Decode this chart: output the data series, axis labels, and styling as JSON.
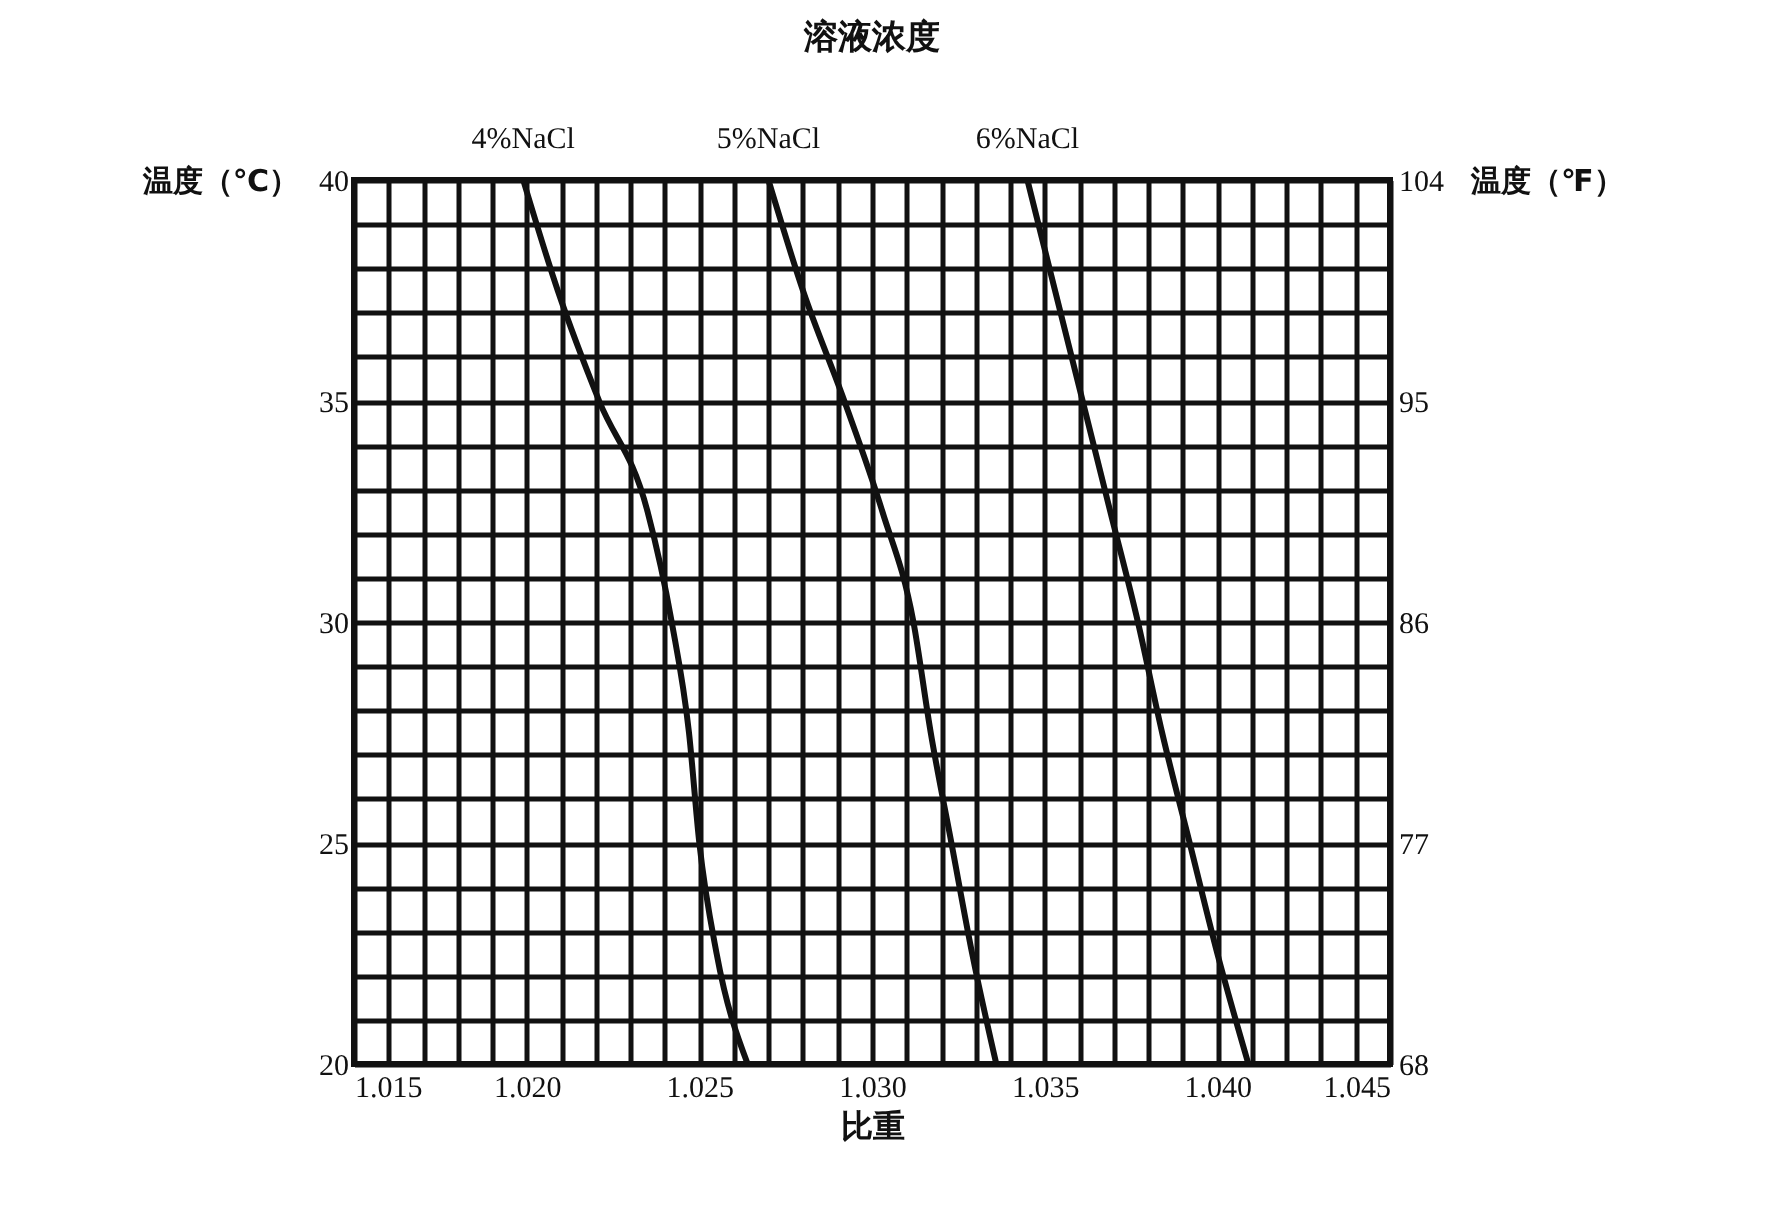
{
  "chart_data": {
    "type": "line",
    "title": "溶液浓度",
    "xlabel": "比重",
    "ylabel": "温度（℃）",
    "y2label": "温度（℉）",
    "series": [
      {
        "name": "4%NaCl",
        "color": "#111111",
        "x": [
          1.0199,
          1.0209,
          1.0221,
          1.0235,
          1.0242,
          1.0247,
          1.025,
          1.0255,
          1.0264
        ],
        "values": [
          40,
          37.5,
          35,
          32.5,
          30,
          27.5,
          25,
          22.5,
          20
        ]
      },
      {
        "name": "5%NaCl",
        "color": "#111111",
        "x": [
          1.027,
          1.028,
          1.0292,
          1.0303,
          1.0312,
          1.0317,
          1.0323,
          1.0329,
          1.0336
        ],
        "values": [
          40,
          37.5,
          35,
          32.5,
          30,
          27.5,
          25,
          22.5,
          20
        ]
      },
      {
        "name": "6%NaCl",
        "color": "#111111",
        "x": [
          1.0345,
          1.0353,
          1.0361,
          1.0369,
          1.0377,
          1.0384,
          1.0392,
          1.04,
          1.0409
        ],
        "values": [
          40,
          37.5,
          35,
          32.5,
          30,
          27.5,
          25,
          22.5,
          20
        ]
      }
    ],
    "xlim": [
      1.015,
      1.045
    ],
    "xticks": [
      1.015,
      {
        "value": 1.02,
        "label": "1.020"
      },
      1.025,
      {
        "value": 1.03,
        "label": "1.030"
      },
      1.035,
      {
        "value": 1.04,
        "label": "1.040"
      },
      1.045
    ],
    "ylim": [
      20,
      40
    ],
    "yticks": [
      20,
      25,
      30,
      35,
      40
    ],
    "y2lim": [
      68,
      104
    ],
    "y2ticks": [
      68,
      77,
      86,
      95,
      104
    ],
    "grid": true,
    "marker": "none",
    "line_style": "solid"
  }
}
